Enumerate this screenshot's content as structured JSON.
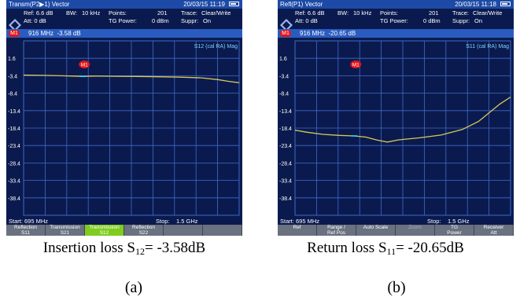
{
  "colors": {
    "screen_bg": "#0b1a4e",
    "title_bar": "#1c4aa6",
    "grid": "#3d6acb",
    "trace": "#d8c95a",
    "marker": "#e3141b",
    "softkey": "#6a7180",
    "softkey_active": "#7fcc1f"
  },
  "panels": [
    {
      "id": "a",
      "title": "Transm(P2▶1) Vector",
      "datetime": "20/03/15 11:19",
      "status": {
        "ref": "Ref: 6.6 dB",
        "att": "Att: 0 dB",
        "bw": "BW:",
        "bw_value": "10 kHz",
        "points_label": "Points:",
        "points_value": "201",
        "tg_power": "TG Power:",
        "tg_value": "0 dBm",
        "trace_label": "Trace:",
        "trace_value": "Clear/Write",
        "suppr_label": "Suppr:",
        "suppr_value": "On"
      },
      "marker": {
        "badge": "M1",
        "freq": "916 MHz",
        "value": "-3.58 dB"
      },
      "trace_label": "S12 (cal RA) Mag",
      "y_ticks": [
        "1.6",
        "-3.4",
        "-8.4",
        "-13.4",
        "-18.4",
        "-23.4",
        "-28.4",
        "-33.4",
        "-38.4"
      ],
      "start": "Start: 695 MHz",
      "stop_label": "Stop:",
      "stop_value": "1.5 GHz",
      "softkeys": [
        {
          "line1": "Reflection",
          "line2": "S11"
        },
        {
          "line1": "Transmission",
          "line2": "S21"
        },
        {
          "line1": "Transmission",
          "line2": "S12"
        },
        {
          "line1": "Reflection",
          "line2": "S22"
        },
        {
          "line1": "",
          "line2": ""
        },
        {
          "line1": "",
          "line2": ""
        }
      ],
      "caption_prefix": "Insertion loss S",
      "caption_sub": "12",
      "caption_suffix": "= -3.58dB",
      "sublabel": "(a)"
    },
    {
      "id": "b",
      "title": "Refl(P1) Vector",
      "datetime": "20/03/15 11:18",
      "status": {
        "ref": "Ref: 6.6 dB",
        "att": "Att: 0 dB",
        "bw": "BW:",
        "bw_value": "10 kHz",
        "points_label": "Points:",
        "points_value": "201",
        "tg_power": "TG Power:",
        "tg_value": "0 dBm",
        "trace_label": "Trace:",
        "trace_value": "Clear/Write",
        "suppr_label": "Suppr:",
        "suppr_value": "On"
      },
      "marker": {
        "badge": "M1",
        "freq": "916 MHz",
        "value": "-20.65 dB"
      },
      "trace_label": "S11 (cal RA) Mag",
      "y_ticks": [
        "1.6",
        "-3.4",
        "-8.4",
        "-13.4",
        "-18.4",
        "-23.4",
        "-28.4",
        "-33.4",
        "-38.4"
      ],
      "start": "Start: 695 MHz",
      "stop_label": "Stop:",
      "stop_value": "1.5 GHz",
      "softkeys": [
        {
          "line1": "",
          "line2": "Ref"
        },
        {
          "line1": "Range /",
          "line2": "Ref Pos"
        },
        {
          "line1": "",
          "line2": "Auto Scale"
        },
        {
          "line1": "",
          "line2": "Zoom"
        },
        {
          "line1": "TG",
          "line2": "Power"
        },
        {
          "line1": "Receiver",
          "line2": "Att"
        }
      ],
      "caption_prefix": "Return loss S",
      "caption_sub": "11",
      "caption_suffix": "= -20.65dB",
      "sublabel": "(b)"
    }
  ],
  "traces": {
    "a": {
      "x_mhz": [
        695,
        780,
        830,
        880,
        916,
        960,
        1040,
        1120,
        1200,
        1280,
        1360,
        1420,
        1460,
        1500
      ],
      "y_db": [
        -3.2,
        -3.3,
        -3.4,
        -3.5,
        -3.58,
        -3.5,
        -3.55,
        -3.6,
        -3.7,
        -3.8,
        -4.0,
        -4.5,
        -5.0,
        -5.4
      ]
    },
    "b": {
      "x_mhz": [
        695,
        740,
        800,
        860,
        916,
        960,
        1000,
        1040,
        1080,
        1160,
        1240,
        1320,
        1380,
        1420,
        1460,
        1500
      ],
      "y_db": [
        -19.0,
        -19.6,
        -20.2,
        -20.5,
        -20.65,
        -21.0,
        -21.8,
        -22.4,
        -21.8,
        -21.2,
        -20.4,
        -18.8,
        -16.5,
        -14.0,
        -11.5,
        -9.5
      ]
    }
  }
}
